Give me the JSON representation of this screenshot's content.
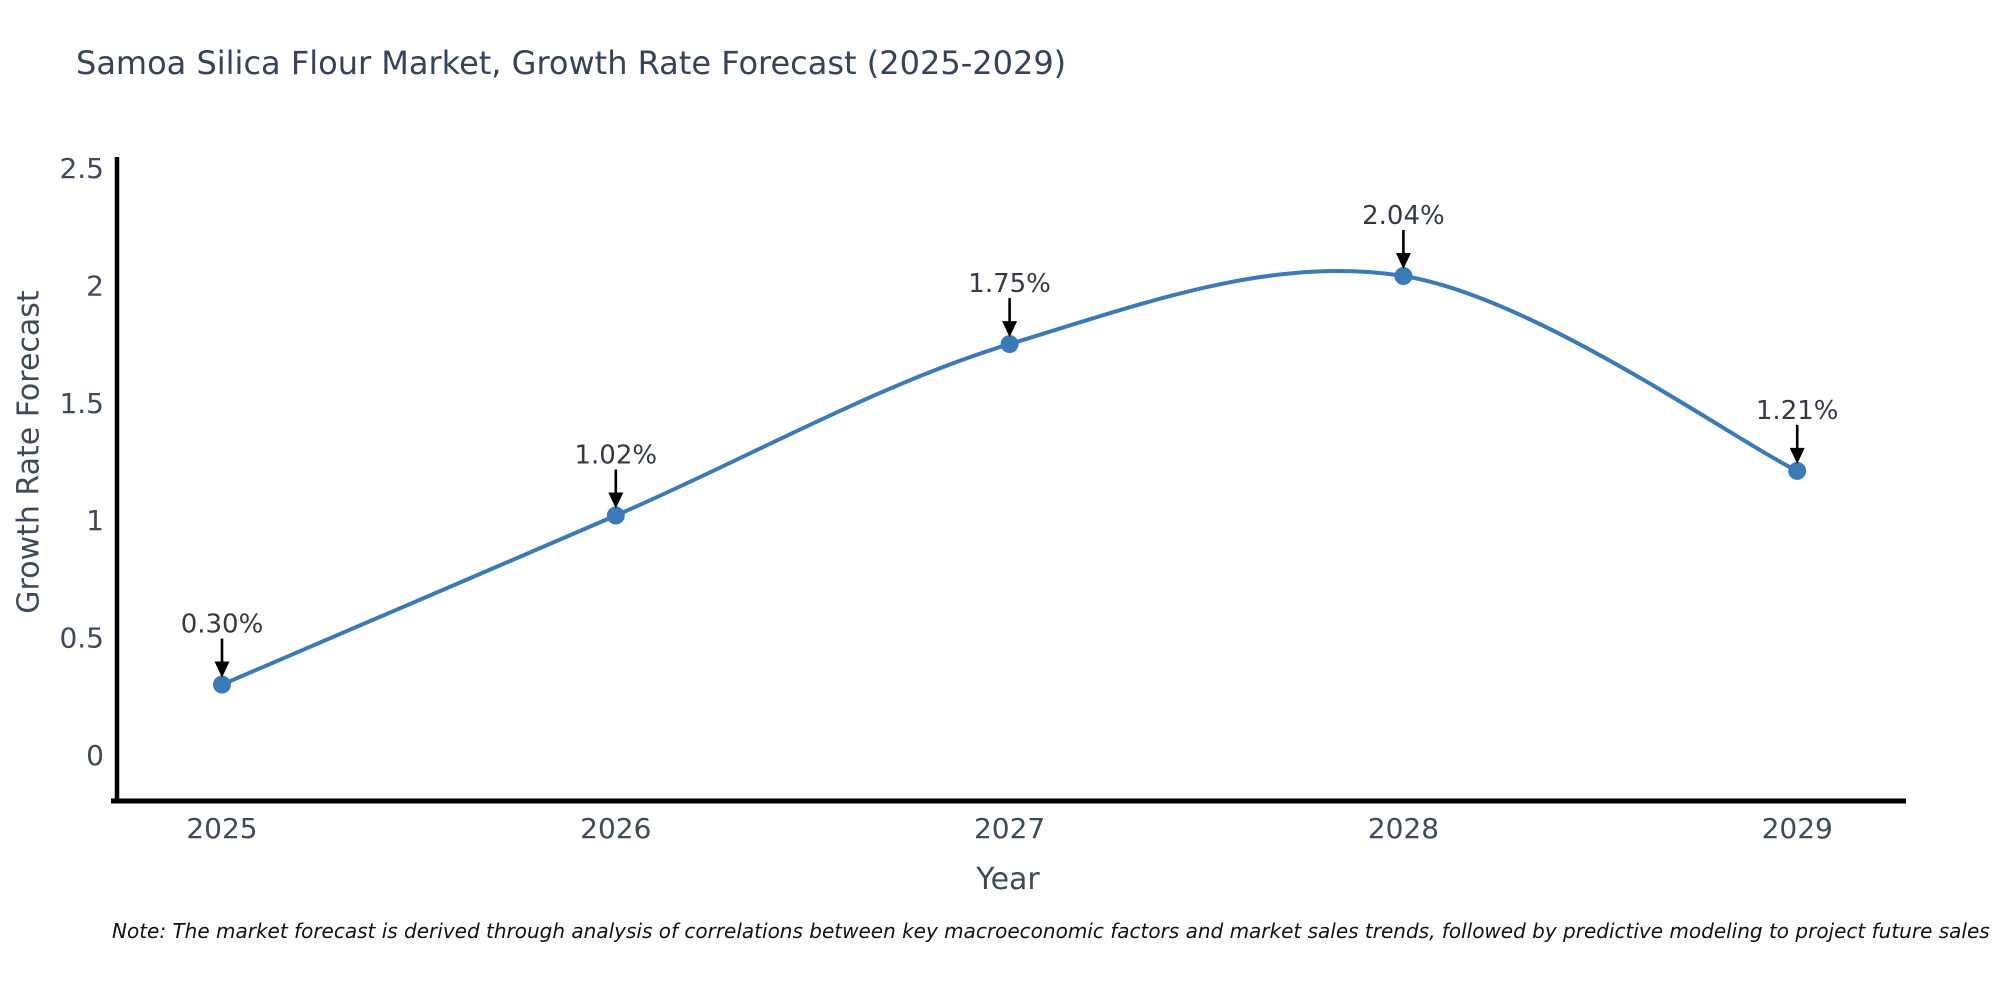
{
  "title": {
    "text": "Samoa Silica Flour Market, Growth Rate Forecast (2025-2029)",
    "color": "#35425c"
  },
  "note": {
    "text": "Note: The market forecast is derived through analysis of correlations between key macroeconomic factors and market sales trends, followed by predictive modeling to project future sales"
  },
  "chart_data": {
    "type": "line",
    "title": "Samoa Silica Flour Market, Growth Rate Forecast (2025-2029)",
    "xlabel": "Year",
    "ylabel": "Growth Rate Forecast",
    "categories": [
      "2025",
      "2026",
      "2027",
      "2028",
      "2029"
    ],
    "values": [
      0.3,
      1.02,
      1.75,
      2.04,
      1.21
    ],
    "point_labels": [
      "0.30%",
      "1.02%",
      "1.75%",
      "2.04%",
      "1.21%"
    ],
    "yticks": [
      0,
      0.5,
      1,
      1.5,
      2,
      2.5
    ],
    "ylim": [
      -0.2,
      2.55
    ],
    "line_shape": "spline",
    "grid": false,
    "legend": false,
    "line_color": "#3b7ab8",
    "marker_color": "#3b7ab8",
    "annotation_arrow_color": "#000000",
    "axis_color": "#000000"
  }
}
